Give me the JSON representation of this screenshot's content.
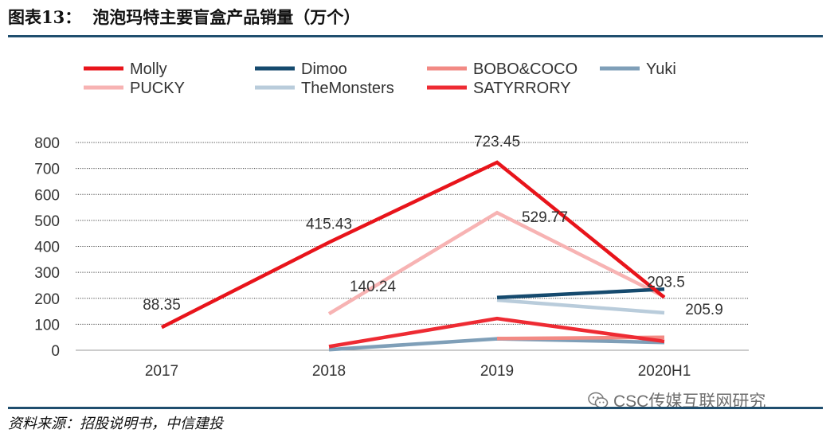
{
  "header": {
    "figure_label": "图表13：",
    "title": "泡泡玛特主要盲盒产品销量（万个）"
  },
  "footer": {
    "source": "资料来源：招股说明书，中信建投",
    "watermark": "CSC传媒互联网研究"
  },
  "icons": {
    "watermark_icon": "wechat-icon"
  },
  "chart_data": {
    "type": "line",
    "title": "泡泡玛特主要盲盒产品销量（万个）",
    "xlabel": "",
    "ylabel": "",
    "categories": [
      "2017",
      "2018",
      "2019",
      "2020H1"
    ],
    "ylim": [
      0,
      800
    ],
    "yticks": [
      0,
      100,
      200,
      300,
      400,
      500,
      600,
      700,
      800
    ],
    "grid": true,
    "legend_position": "top",
    "series": [
      {
        "name": "Molly",
        "color": "#e8141b",
        "values": [
          88.35,
          415.43,
          723.45,
          203.5
        ]
      },
      {
        "name": "Dimoo",
        "color": "#154a6e",
        "values": [
          null,
          null,
          203,
          235
        ]
      },
      {
        "name": "BOBO&COCO",
        "color": "#f28a84",
        "values": [
          null,
          null,
          45,
          50
        ]
      },
      {
        "name": "Yuki",
        "color": "#7f9fb8",
        "values": [
          null,
          2,
          44,
          30
        ]
      },
      {
        "name": "PUCKY",
        "color": "#f7b3b3",
        "values": [
          null,
          140.24,
          529.77,
          205.9
        ]
      },
      {
        "name": "TheMonsters",
        "color": "#b9ccdb",
        "values": [
          null,
          null,
          193,
          144
        ]
      },
      {
        "name": "SATYRRORY",
        "color": "#ee2b33",
        "values": [
          null,
          14,
          122,
          34
        ]
      }
    ],
    "data_labels": [
      {
        "series": "Molly",
        "category": "2017",
        "text": "88.35"
      },
      {
        "series": "Molly",
        "category": "2018",
        "text": "415.43"
      },
      {
        "series": "Molly",
        "category": "2019",
        "text": "723.45"
      },
      {
        "series": "Molly",
        "category": "2020H1",
        "text": "203.5"
      },
      {
        "series": "PUCKY",
        "category": "2018",
        "text": "140.24"
      },
      {
        "series": "PUCKY",
        "category": "2019",
        "text": "529.77"
      },
      {
        "series": "PUCKY",
        "category": "2020H1",
        "text": "205.9"
      }
    ]
  }
}
